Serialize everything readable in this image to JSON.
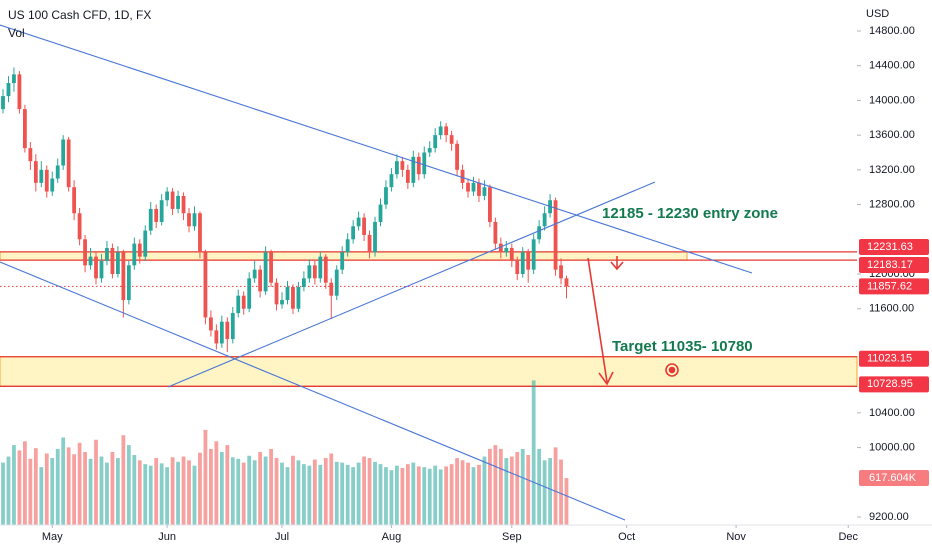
{
  "chart_data": {
    "type": "candlestick",
    "title": "US 100 Cash CFD, 1D, FX",
    "volume_title": "Vol",
    "currency": "USD",
    "up_color": "#26a69a",
    "down_color": "#ef5350",
    "xlim": [
      -0.55,
      156.1
    ],
    "xticks": [
      {
        "value": 9,
        "label": "May"
      },
      {
        "value": 30,
        "label": "Jun"
      },
      {
        "value": 51,
        "label": "Jul"
      },
      {
        "value": 71,
        "label": "Aug"
      },
      {
        "value": 93,
        "label": "Sep"
      },
      {
        "value": 114,
        "label": "Oct"
      },
      {
        "value": 134,
        "label": "Nov"
      },
      {
        "value": 154.5,
        "label": "Dec"
      }
    ],
    "ylim": [
      9108,
      15157
    ],
    "yticks": [
      {
        "value": 14800,
        "label": "14800.00"
      },
      {
        "value": 14400,
        "label": "14400.00"
      },
      {
        "value": 14000,
        "label": "14000.00"
      },
      {
        "value": 13600,
        "label": "13600.00"
      },
      {
        "value": 13200,
        "label": "13200.00"
      },
      {
        "value": 12800,
        "label": "12800.00"
      },
      {
        "value": 12000,
        "label": "12000.00"
      },
      {
        "value": 11600,
        "label": "11600.00"
      },
      {
        "value": 10400,
        "label": "10400.00"
      },
      {
        "value": 10000,
        "label": "10000.00"
      },
      {
        "value": 9200,
        "label": "9200.00"
      }
    ],
    "volume_lim": [
      0,
      6900000
    ],
    "candles": [
      [
        13900,
        14130,
        13850,
        14050
      ],
      [
        14050,
        14280,
        13980,
        14200
      ],
      [
        14200,
        14380,
        14100,
        14300
      ],
      [
        14300,
        14340,
        13850,
        13900
      ],
      [
        13900,
        13950,
        13400,
        13450
      ],
      [
        13450,
        13520,
        13200,
        13300
      ],
      [
        13300,
        13380,
        12950,
        13050
      ],
      [
        13050,
        13300,
        13000,
        13200
      ],
      [
        13200,
        13250,
        12880,
        12950
      ],
      [
        12950,
        13180,
        12900,
        13100
      ],
      [
        13100,
        13330,
        13050,
        13250
      ],
      [
        13250,
        13600,
        13200,
        13550
      ],
      [
        13550,
        13580,
        12950,
        13000
      ],
      [
        13000,
        13080,
        12620,
        12700
      ],
      [
        12700,
        12760,
        12330,
        12400
      ],
      [
        12400,
        12450,
        12020,
        12100
      ],
      [
        12100,
        12300,
        12050,
        12200
      ],
      [
        12200,
        12260,
        11880,
        11950
      ],
      [
        11950,
        12230,
        11900,
        12150
      ],
      [
        12150,
        12380,
        12100,
        12300
      ],
      [
        12300,
        12350,
        11950,
        12000
      ],
      [
        12000,
        12320,
        11960,
        12250
      ],
      [
        12250,
        12280,
        11500,
        11700
      ],
      [
        11700,
        12150,
        11650,
        12100
      ],
      [
        12100,
        12420,
        12050,
        12350
      ],
      [
        12350,
        12400,
        12120,
        12200
      ],
      [
        12200,
        12560,
        12150,
        12500
      ],
      [
        12500,
        12830,
        12450,
        12750
      ],
      [
        12750,
        12800,
        12530,
        12600
      ],
      [
        12600,
        12920,
        12560,
        12850
      ],
      [
        12850,
        13000,
        12780,
        12950
      ],
      [
        12950,
        12990,
        12680,
        12750
      ],
      [
        12750,
        12960,
        12700,
        12900
      ],
      [
        12900,
        12940,
        12620,
        12700
      ],
      [
        12700,
        12760,
        12480,
        12550
      ],
      [
        12550,
        12780,
        12500,
        12700
      ],
      [
        12700,
        12720,
        12180,
        12250
      ],
      [
        12250,
        12280,
        11420,
        11500
      ],
      [
        11500,
        11580,
        11280,
        11350
      ],
      [
        11350,
        11420,
        11130,
        11200
      ],
      [
        11200,
        11520,
        11150,
        11450
      ],
      [
        11450,
        11500,
        11100,
        11250
      ],
      [
        11250,
        11620,
        11200,
        11550
      ],
      [
        11550,
        11820,
        11500,
        11750
      ],
      [
        11750,
        11800,
        11530,
        11600
      ],
      [
        11600,
        12020,
        11560,
        11950
      ],
      [
        11950,
        12150,
        11900,
        12050
      ],
      [
        12050,
        12100,
        11730,
        11800
      ],
      [
        11800,
        12320,
        11760,
        12250
      ],
      [
        12250,
        12280,
        11850,
        11900
      ],
      [
        11900,
        11950,
        11580,
        11650
      ],
      [
        11650,
        11790,
        11600,
        11700
      ],
      [
        11700,
        11920,
        11650,
        11850
      ],
      [
        11850,
        11880,
        11540,
        11600
      ],
      [
        11600,
        11910,
        11560,
        11850
      ],
      [
        11850,
        12030,
        11800,
        11950
      ],
      [
        11950,
        12170,
        11900,
        12100
      ],
      [
        12100,
        12150,
        11880,
        11950
      ],
      [
        11950,
        12260,
        11900,
        12200
      ],
      [
        12200,
        12230,
        11830,
        11900
      ],
      [
        11900,
        11950,
        11480,
        11750
      ],
      [
        11750,
        12100,
        11700,
        12050
      ],
      [
        12050,
        12320,
        12000,
        12250
      ],
      [
        12250,
        12470,
        12200,
        12400
      ],
      [
        12400,
        12620,
        12350,
        12550
      ],
      [
        12550,
        12720,
        12500,
        12650
      ],
      [
        12650,
        12700,
        12380,
        12450
      ],
      [
        12450,
        12500,
        12180,
        12250
      ],
      [
        12250,
        12660,
        12200,
        12600
      ],
      [
        12600,
        12870,
        12550,
        12800
      ],
      [
        12800,
        13080,
        12750,
        13000
      ],
      [
        13000,
        13220,
        12950,
        13150
      ],
      [
        13150,
        13380,
        13100,
        13300
      ],
      [
        13300,
        13350,
        13120,
        13200
      ],
      [
        13200,
        13260,
        12980,
        13050
      ],
      [
        13050,
        13420,
        13000,
        13350
      ],
      [
        13350,
        13400,
        13080,
        13150
      ],
      [
        13150,
        13470,
        13100,
        13400
      ],
      [
        13400,
        13530,
        13350,
        13450
      ],
      [
        13450,
        13680,
        13400,
        13600
      ],
      [
        13600,
        13760,
        13550,
        13700
      ],
      [
        13700,
        13740,
        13520,
        13600
      ],
      [
        13600,
        13650,
        13420,
        13500
      ],
      [
        13500,
        13540,
        13130,
        13200
      ],
      [
        13200,
        13260,
        12980,
        13050
      ],
      [
        13050,
        13100,
        12880,
        12950
      ],
      [
        12950,
        13120,
        12900,
        13050
      ],
      [
        13050,
        13100,
        12830,
        12900
      ],
      [
        12900,
        13080,
        12850,
        13000
      ],
      [
        13000,
        13030,
        12540,
        12600
      ],
      [
        12600,
        12650,
        12280,
        12350
      ],
      [
        12350,
        12420,
        12180,
        12250
      ],
      [
        12250,
        12380,
        12200,
        12300
      ],
      [
        12300,
        12350,
        12080,
        12150
      ],
      [
        12150,
        12200,
        11930,
        12000
      ],
      [
        12000,
        12310,
        11960,
        12250
      ],
      [
        12250,
        12290,
        11900,
        12050
      ],
      [
        12050,
        12460,
        12000,
        12400
      ],
      [
        12400,
        12620,
        12350,
        12550
      ],
      [
        12550,
        12780,
        12500,
        12700
      ],
      [
        12700,
        12920,
        12650,
        12850
      ],
      [
        12850,
        12880,
        11980,
        12050
      ],
      [
        12100,
        12180,
        11880,
        11950
      ],
      [
        11950,
        11980,
        11720,
        11857.62
      ]
    ],
    "volumes": [
      820000,
      900000,
      1050000,
      980000,
      1100000,
      870000,
      1010000,
      760000,
      940000,
      880000,
      1000000,
      1150000,
      1020000,
      930000,
      1080000,
      960000,
      870000,
      1120000,
      900000,
      820000,
      960000,
      880000,
      1180000,
      1050000,
      920000,
      850000,
      800000,
      780000,
      880000,
      810000,
      760000,
      890000,
      830000,
      900000,
      850000,
      780000,
      950000,
      1250000,
      1000000,
      1100000,
      960000,
      1050000,
      890000,
      870000,
      820000,
      910000,
      850000,
      960000,
      900000,
      1000000,
      880000,
      820000,
      760000,
      910000,
      850000,
      800000,
      780000,
      860000,
      790000,
      880000,
      940000,
      830000,
      820000,
      790000,
      760000,
      820000,
      900000,
      880000,
      830000,
      800000,
      760000,
      720000,
      780000,
      750000,
      800000,
      820000,
      770000,
      760000,
      740000,
      780000,
      730000,
      770000,
      800000,
      880000,
      850000,
      820000,
      760000,
      790000,
      900000,
      1000000,
      1050000,
      1000000,
      880000,
      900000,
      960000,
      1000000,
      920000,
      1900000,
      1000000,
      850000,
      880000,
      1020000,
      860000,
      617604
    ],
    "last_volume_label": "617.604K",
    "last_price": 11857.62,
    "zones": [
      {
        "top": 12231.63,
        "bottom": 12183.17,
        "label": "12185 - 12230 entry zone"
      },
      {
        "top": 11023.15,
        "bottom": 10728.95,
        "label": "Target 11035- 10780"
      }
    ]
  }
}
